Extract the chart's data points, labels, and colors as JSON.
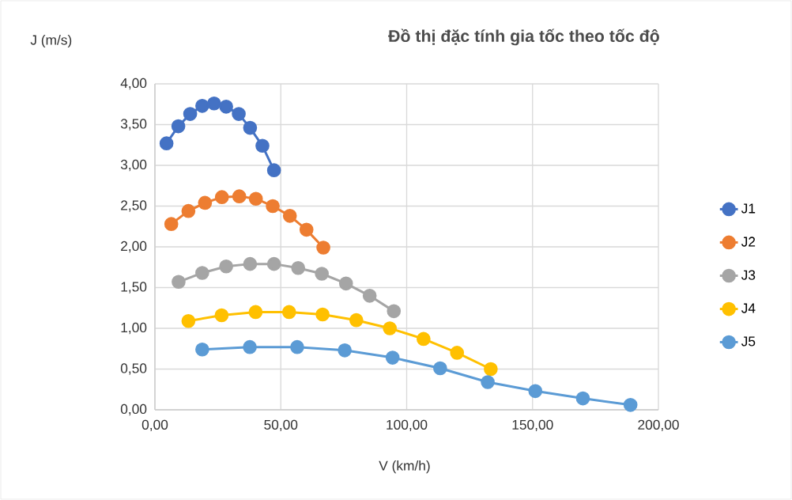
{
  "chart_data": {
    "type": "line",
    "title": "Đồ thị đặc tính gia tốc theo tốc độ",
    "xlabel": "V (km/h)",
    "ylabel": "J (m/s)",
    "xlim": [
      0,
      200
    ],
    "ylim": [
      0,
      4
    ],
    "xticks": [
      {
        "value": 0,
        "label": "0,00"
      },
      {
        "value": 50,
        "label": "50,00"
      },
      {
        "value": 100,
        "label": "100,00"
      },
      {
        "value": 150,
        "label": "150,00"
      },
      {
        "value": 200,
        "label": "200,00"
      }
    ],
    "yticks": [
      {
        "value": 0,
        "label": "0,00"
      },
      {
        "value": 0.5,
        "label": "0,50"
      },
      {
        "value": 1,
        "label": "1,00"
      },
      {
        "value": 1.5,
        "label": "1,50"
      },
      {
        "value": 2,
        "label": "2,00"
      },
      {
        "value": 2.5,
        "label": "2,50"
      },
      {
        "value": 3,
        "label": "3,00"
      },
      {
        "value": 3.5,
        "label": "3,50"
      },
      {
        "value": 4,
        "label": "4,00"
      }
    ],
    "grid": true,
    "legend": "right",
    "marker": "circle",
    "line_style": "solid",
    "series": [
      {
        "name": "J1",
        "color": "#4472c4",
        "x": [
          4.6,
          9.3,
          14.0,
          18.8,
          23.5,
          28.3,
          33.3,
          37.8,
          42.7,
          47.3
        ],
        "values": [
          3.27,
          3.48,
          3.63,
          3.73,
          3.76,
          3.72,
          3.63,
          3.46,
          3.24,
          2.94
        ]
      },
      {
        "name": "J2",
        "color": "#ed7d31",
        "x": [
          6.5,
          13.3,
          19.9,
          26.6,
          33.5,
          40.1,
          46.8,
          53.6,
          60.2,
          66.9
        ],
        "values": [
          2.28,
          2.44,
          2.54,
          2.61,
          2.62,
          2.59,
          2.5,
          2.38,
          2.21,
          1.99
        ]
      },
      {
        "name": "J3",
        "color": "#a5a5a5",
        "x": [
          9.4,
          18.8,
          28.3,
          37.8,
          47.3,
          56.9,
          66.3,
          75.9,
          85.3,
          94.9
        ],
        "values": [
          1.57,
          1.68,
          1.76,
          1.79,
          1.79,
          1.74,
          1.67,
          1.55,
          1.4,
          1.21
        ]
      },
      {
        "name": "J4",
        "color": "#ffc000",
        "x": [
          13.3,
          26.5,
          40.0,
          53.3,
          66.6,
          80.0,
          93.3,
          106.7,
          120.0,
          133.4
        ],
        "values": [
          1.09,
          1.16,
          1.2,
          1.2,
          1.17,
          1.1,
          1.0,
          0.87,
          0.7,
          0.5
        ]
      },
      {
        "name": "J5",
        "color": "#5b9bd5",
        "x": [
          18.8,
          37.7,
          56.5,
          75.4,
          94.4,
          113.3,
          132.2,
          151.1,
          170.0,
          188.9
        ],
        "values": [
          0.74,
          0.77,
          0.77,
          0.73,
          0.64,
          0.51,
          0.34,
          0.23,
          0.14,
          0.06
        ]
      }
    ]
  }
}
